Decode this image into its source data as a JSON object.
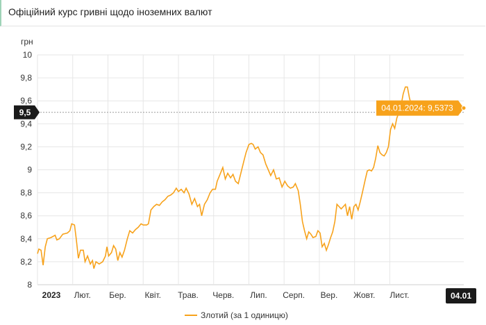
{
  "header": {
    "title": "Офіційний курс гривні щодо іноземних валют"
  },
  "colors": {
    "series": "#f7a21b",
    "tooltip": "#f7a21b",
    "crosshair_label": "#1a1a1a"
  },
  "chart_data": {
    "type": "line",
    "ylabel": "грн",
    "ylim": [
      8,
      10
    ],
    "yticks": [
      "10",
      "9,8",
      "9,6",
      "9,4",
      "9,2",
      "9",
      "8,8",
      "8,6",
      "8,4",
      "8,2",
      "8"
    ],
    "ytick_values": [
      10,
      9.8,
      9.6,
      9.4,
      9.2,
      9.0,
      8.8,
      8.6,
      8.4,
      8.2,
      8.0
    ],
    "xlim": [
      0,
      12.1
    ],
    "xticks": [
      {
        "label": "2023",
        "x": 0,
        "bold": true
      },
      {
        "label": "Лют.",
        "x": 1
      },
      {
        "label": "Бер.",
        "x": 2
      },
      {
        "label": "Квіт.",
        "x": 3
      },
      {
        "label": "Трав.",
        "x": 4
      },
      {
        "label": "Черв.",
        "x": 5
      },
      {
        "label": "Лип.",
        "x": 6
      },
      {
        "label": "Серп.",
        "x": 7
      },
      {
        "label": "Вер.",
        "x": 8
      },
      {
        "label": "Жовт.",
        "x": 9
      },
      {
        "label": "Лист.",
        "x": 10
      },
      {
        "label": "04.01",
        "x": 12.1,
        "bold": true
      }
    ],
    "grid": true,
    "crosshair": {
      "y_label": "9,5",
      "y": 9.5
    },
    "tooltip": {
      "text": "04.01.2024: 9,5373",
      "x": 12.1,
      "y": 9.5373
    },
    "series": [
      {
        "name": "Злотий (за 1 одиницю)",
        "points": [
          [
            0.0,
            8.27
          ],
          [
            0.04,
            8.31
          ],
          [
            0.1,
            8.3
          ],
          [
            0.16,
            8.17
          ],
          [
            0.22,
            8.33
          ],
          [
            0.28,
            8.4
          ],
          [
            0.38,
            8.41
          ],
          [
            0.5,
            8.43
          ],
          [
            0.55,
            8.39
          ],
          [
            0.62,
            8.4
          ],
          [
            0.72,
            8.44
          ],
          [
            0.85,
            8.45
          ],
          [
            0.92,
            8.47
          ],
          [
            0.97,
            8.53
          ],
          [
            1.05,
            8.52
          ],
          [
            1.1,
            8.4
          ],
          [
            1.16,
            8.23
          ],
          [
            1.22,
            8.3
          ],
          [
            1.3,
            8.3
          ],
          [
            1.35,
            8.2
          ],
          [
            1.42,
            8.25
          ],
          [
            1.5,
            8.18
          ],
          [
            1.56,
            8.21
          ],
          [
            1.6,
            8.14
          ],
          [
            1.66,
            8.2
          ],
          [
            1.75,
            8.18
          ],
          [
            1.85,
            8.2
          ],
          [
            1.93,
            8.25
          ],
          [
            1.97,
            8.33
          ],
          [
            2.02,
            8.25
          ],
          [
            2.1,
            8.28
          ],
          [
            2.16,
            8.34
          ],
          [
            2.22,
            8.31
          ],
          [
            2.28,
            8.21
          ],
          [
            2.34,
            8.28
          ],
          [
            2.4,
            8.24
          ],
          [
            2.47,
            8.3
          ],
          [
            2.55,
            8.4
          ],
          [
            2.62,
            8.47
          ],
          [
            2.7,
            8.45
          ],
          [
            2.78,
            8.48
          ],
          [
            2.86,
            8.5
          ],
          [
            2.94,
            8.53
          ],
          [
            3.0,
            8.52
          ],
          [
            3.1,
            8.52
          ],
          [
            3.15,
            8.53
          ],
          [
            3.22,
            8.65
          ],
          [
            3.3,
            8.68
          ],
          [
            3.38,
            8.7
          ],
          [
            3.46,
            8.69
          ],
          [
            3.54,
            8.72
          ],
          [
            3.62,
            8.74
          ],
          [
            3.7,
            8.77
          ],
          [
            3.78,
            8.78
          ],
          [
            3.86,
            8.8
          ],
          [
            3.94,
            8.84
          ],
          [
            4.0,
            8.81
          ],
          [
            4.08,
            8.83
          ],
          [
            4.16,
            8.8
          ],
          [
            4.22,
            8.84
          ],
          [
            4.3,
            8.79
          ],
          [
            4.38,
            8.7
          ],
          [
            4.46,
            8.75
          ],
          [
            4.54,
            8.68
          ],
          [
            4.6,
            8.7
          ],
          [
            4.66,
            8.6
          ],
          [
            4.74,
            8.7
          ],
          [
            4.82,
            8.74
          ],
          [
            4.9,
            8.8
          ],
          [
            4.97,
            8.83
          ],
          [
            5.05,
            8.83
          ],
          [
            5.1,
            8.9
          ],
          [
            5.18,
            8.96
          ],
          [
            5.26,
            9.02
          ],
          [
            5.33,
            8.92
          ],
          [
            5.4,
            8.97
          ],
          [
            5.48,
            8.93
          ],
          [
            5.55,
            8.96
          ],
          [
            5.62,
            8.9
          ],
          [
            5.7,
            8.88
          ],
          [
            5.78,
            8.98
          ],
          [
            5.86,
            9.08
          ],
          [
            5.92,
            9.15
          ],
          [
            6.0,
            9.22
          ],
          [
            6.07,
            9.23
          ],
          [
            6.12,
            9.22
          ],
          [
            6.18,
            9.18
          ],
          [
            6.26,
            9.2
          ],
          [
            6.33,
            9.15
          ],
          [
            6.4,
            9.13
          ],
          [
            6.48,
            9.05
          ],
          [
            6.55,
            9.0
          ],
          [
            6.62,
            8.95
          ],
          [
            6.7,
            9.0
          ],
          [
            6.78,
            8.92
          ],
          [
            6.86,
            8.93
          ],
          [
            6.94,
            8.85
          ],
          [
            7.02,
            8.9
          ],
          [
            7.1,
            8.86
          ],
          [
            7.18,
            8.84
          ],
          [
            7.26,
            8.85
          ],
          [
            7.32,
            8.88
          ],
          [
            7.4,
            8.82
          ],
          [
            7.46,
            8.7
          ],
          [
            7.52,
            8.55
          ],
          [
            7.58,
            8.47
          ],
          [
            7.64,
            8.4
          ],
          [
            7.7,
            8.46
          ],
          [
            7.76,
            8.44
          ],
          [
            7.82,
            8.41
          ],
          [
            7.9,
            8.42
          ],
          [
            7.96,
            8.47
          ],
          [
            8.02,
            8.45
          ],
          [
            8.08,
            8.33
          ],
          [
            8.14,
            8.36
          ],
          [
            8.2,
            8.3
          ],
          [
            8.26,
            8.35
          ],
          [
            8.32,
            8.41
          ],
          [
            8.38,
            8.46
          ],
          [
            8.44,
            8.55
          ],
          [
            8.5,
            8.7
          ],
          [
            8.56,
            8.68
          ],
          [
            8.62,
            8.66
          ],
          [
            8.68,
            8.68
          ],
          [
            8.74,
            8.7
          ],
          [
            8.8,
            8.6
          ],
          [
            8.86,
            8.68
          ],
          [
            8.92,
            8.57
          ],
          [
            8.98,
            8.68
          ],
          [
            9.04,
            8.7
          ],
          [
            9.1,
            8.65
          ],
          [
            9.16,
            8.72
          ],
          [
            9.22,
            8.8
          ],
          [
            9.3,
            8.91
          ],
          [
            9.36,
            8.99
          ],
          [
            9.42,
            9.0
          ],
          [
            9.48,
            8.99
          ],
          [
            9.54,
            9.02
          ],
          [
            9.6,
            9.1
          ],
          [
            9.66,
            9.21
          ],
          [
            9.72,
            9.15
          ],
          [
            9.78,
            9.13
          ],
          [
            9.84,
            9.12
          ],
          [
            9.9,
            9.15
          ],
          [
            9.96,
            9.2
          ],
          [
            10.02,
            9.35
          ],
          [
            10.08,
            9.4
          ],
          [
            10.14,
            9.36
          ],
          [
            10.2,
            9.45
          ],
          [
            10.26,
            9.5
          ],
          [
            10.32,
            9.56
          ],
          [
            10.38,
            9.66
          ],
          [
            10.44,
            9.72
          ],
          [
            10.5,
            9.72
          ],
          [
            10.56,
            9.62
          ],
          [
            10.6,
            9.58
          ]
        ]
      }
    ]
  }
}
